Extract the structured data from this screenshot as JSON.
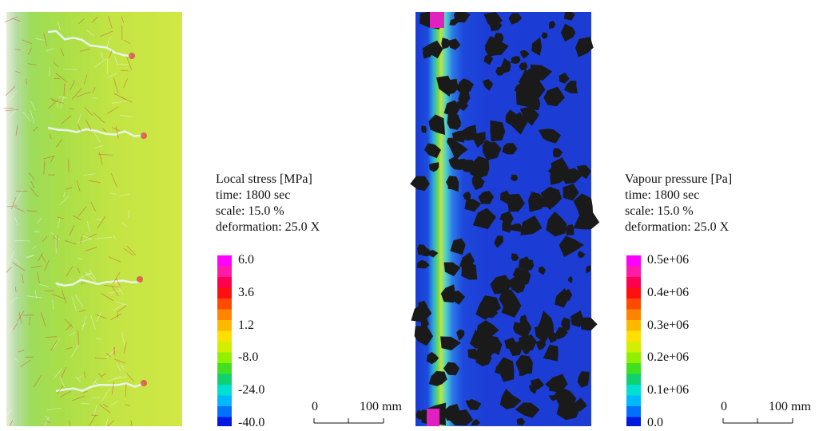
{
  "panels": [
    {
      "legend": {
        "title": "Local stress [MPa]",
        "time": "time: 1800 sec",
        "scale": "scale: 15.0 %",
        "deformation": "deformation: 25.0 X"
      },
      "colorbar_labels": [
        "6.0",
        "3.6",
        "1.2",
        "-8.0",
        "-24.0",
        "-40.0"
      ],
      "scale_bar": {
        "start": "0",
        "end": "100 mm"
      }
    },
    {
      "legend": {
        "title": "Vapour pressure [Pa]",
        "time": "time: 1800 sec",
        "scale": "scale: 15.0 %",
        "deformation": "deformation: 25.0 X"
      },
      "colorbar_labels": [
        "0.5e+06",
        "0.4e+06",
        "0.3e+06",
        "0.2e+06",
        "0.1e+06",
        "0.0"
      ],
      "scale_bar": {
        "start": "0",
        "end": "100 mm"
      }
    }
  ]
}
